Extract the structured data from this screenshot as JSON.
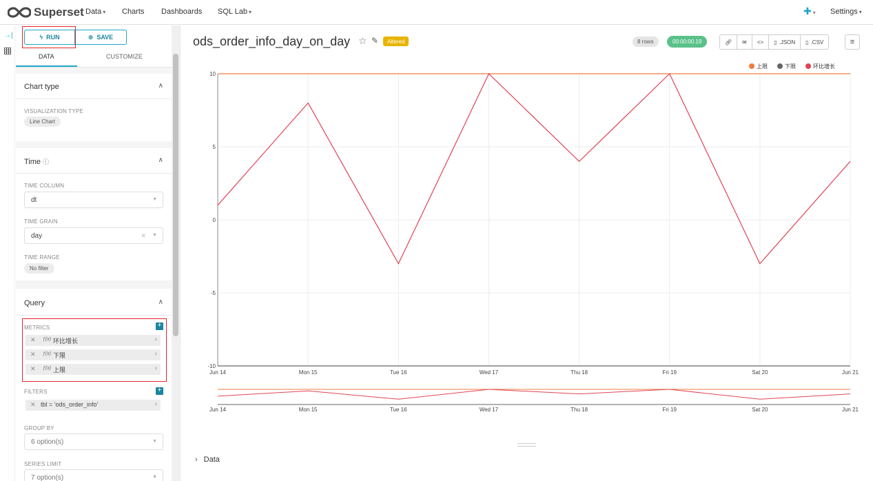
{
  "nav": {
    "brand": "Superset",
    "items": [
      {
        "label": "Data",
        "has_caret": true
      },
      {
        "label": "Charts",
        "has_caret": false
      },
      {
        "label": "Dashboards",
        "has_caret": false
      },
      {
        "label": "SQL Lab",
        "has_caret": true
      }
    ],
    "settings_label": "Settings",
    "plus_icon": "plus-icon"
  },
  "panel": {
    "run_label": "RUN",
    "save_label": "SAVE",
    "tabs": [
      "DATA",
      "CUSTOMIZE"
    ],
    "chart_type": {
      "title": "Chart type",
      "viz_label": "VISUALIZATION TYPE",
      "viz_value": "Line Chart"
    },
    "time": {
      "title": "Time",
      "column_label": "TIME COLUMN",
      "column_value": "dt",
      "grain_label": "TIME GRAIN",
      "grain_value": "day",
      "range_label": "TIME RANGE",
      "range_value": "No filter"
    },
    "query": {
      "title": "Query",
      "metrics_label": "METRICS",
      "metrics": [
        "环比增长",
        "下限",
        "上限"
      ],
      "filters_label": "FILTERS",
      "filters": [
        "tbl = 'ods_order_info'"
      ],
      "groupby_label": "GROUP BY",
      "groupby_value": "6 option(s)",
      "series_limit_label": "SERIES LIMIT",
      "series_limit_value": "7 option(s)"
    }
  },
  "header": {
    "title": "ods_order_info_day_on_day",
    "altered_label": "Altered",
    "rows_label": "8 rows",
    "time_label": "00:00:00.19",
    "buttons": [
      ".JSON",
      ".CSV"
    ]
  },
  "chart_data": {
    "type": "line",
    "categories": [
      "Jun 14",
      "Mon 15",
      "Tue 16",
      "Wed 17",
      "Thu 18",
      "Fri 19",
      "Sat 20",
      "Jun 21"
    ],
    "series": [
      {
        "name": "上限",
        "color": "#f07b3f",
        "values": [
          10,
          10,
          10,
          10,
          10,
          10,
          10,
          10
        ]
      },
      {
        "name": "下限",
        "color": "#666666",
        "values": [
          -10,
          -10,
          -10,
          -10,
          -10,
          -10,
          -10,
          -10
        ]
      },
      {
        "name": "环比增长",
        "color": "#e04355",
        "values": [
          1,
          8,
          -3,
          10,
          4,
          10,
          -3,
          4
        ]
      }
    ],
    "yticks": [
      "10",
      "5",
      "0",
      "-5",
      "-10"
    ],
    "ylim": [
      -10,
      10
    ],
    "legend_position": "top-right",
    "grid": true
  },
  "footer": {
    "data_label": "Data"
  }
}
